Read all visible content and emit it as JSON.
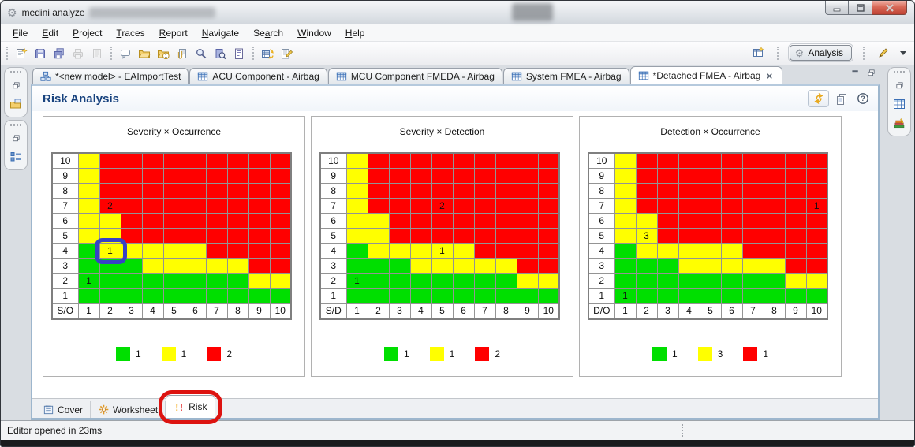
{
  "window": {
    "title": "medini analyze"
  },
  "menu": {
    "items": [
      {
        "label": "File",
        "underline": 0
      },
      {
        "label": "Edit",
        "underline": 0
      },
      {
        "label": "Project",
        "underline": 0
      },
      {
        "label": "Traces",
        "underline": 0
      },
      {
        "label": "Report",
        "underline": 0
      },
      {
        "label": "Navigate",
        "underline": 0
      },
      {
        "label": "Search",
        "underline": 2
      },
      {
        "label": "Window",
        "underline": 0
      },
      {
        "label": "Help",
        "underline": 0
      }
    ]
  },
  "toolbar": {
    "groups": [
      [
        "new-model-icon",
        "save-icon",
        "save-all-icon",
        "print-icon",
        "print-preview-icon"
      ],
      [
        "comment-icon",
        "open-folder-icon",
        "open-recent-icon",
        "attachment-icon",
        "search-icon",
        "inspect-icon",
        "report-icon"
      ],
      [
        "table-refresh-icon",
        "validate-icon"
      ]
    ],
    "perspective_icon": "perspective-icon",
    "analysis_label": "Analysis",
    "pen_icon": "pen-icon"
  },
  "left_strips": [
    [
      "restore-pane-icon",
      "folder-documents-icon"
    ],
    [
      "restore-pane-icon",
      "outline-icon"
    ]
  ],
  "right_strip": [
    "restore-pane-icon",
    "table-view-icon",
    "books-icon"
  ],
  "editor_tabs": [
    {
      "label": "*<new model> - EAImportTest",
      "icon": "model-icon",
      "active": false,
      "closable": false
    },
    {
      "label": "ACU Component - Airbag",
      "icon": "table-icon",
      "active": false,
      "closable": false
    },
    {
      "label": "MCU Component FMEDA - Airbag",
      "icon": "table-icon",
      "active": false,
      "closable": false
    },
    {
      "label": "System FMEA - Airbag",
      "icon": "table-icon",
      "active": false,
      "closable": false
    },
    {
      "label": "*Detached FMEA - Airbag",
      "icon": "table-icon",
      "active": true,
      "closable": true
    }
  ],
  "tabbar_controls": [
    "minimize-pane-icon",
    "restore-pane-icon"
  ],
  "risk_view": {
    "title": "Risk Analysis",
    "header_icons": [
      "refresh-icon",
      "copy-icon",
      "help-icon"
    ],
    "matrices": [
      {
        "title": "Severity × Occurrence",
        "axis_label": "S/O",
        "row_labels": [
          "10",
          "9",
          "8",
          "7",
          "6",
          "5",
          "4",
          "3",
          "2",
          "1"
        ],
        "col_labels": [
          "1",
          "2",
          "3",
          "4",
          "5",
          "6",
          "7",
          "8",
          "9",
          "10"
        ],
        "cells": [
          "YRRRRRRRRR",
          "YRRRRRRRRR",
          "YRRRRRRRRR",
          "YRRRRRRRRR",
          "YYRRRRRRRR",
          "YYRRRRRRRR",
          "GYYYYYRRRR",
          "GGGYYYYYRR",
          "GGGGGGGGYY",
          "GGGGGGGGGG"
        ],
        "cell_texts": [
          {
            "row": "7",
            "col": "2",
            "value": "2"
          },
          {
            "row": "4",
            "col": "2",
            "value": "1"
          },
          {
            "row": "2",
            "col": "1",
            "value": "1"
          }
        ],
        "highlight": {
          "row": "4",
          "col": "2"
        },
        "legend": [
          {
            "color": "green",
            "count": "1"
          },
          {
            "color": "yellow",
            "count": "1"
          },
          {
            "color": "red",
            "count": "2"
          }
        ]
      },
      {
        "title": "Severity × Detection",
        "axis_label": "S/D",
        "row_labels": [
          "10",
          "9",
          "8",
          "7",
          "6",
          "5",
          "4",
          "3",
          "2",
          "1"
        ],
        "col_labels": [
          "1",
          "2",
          "3",
          "4",
          "5",
          "6",
          "7",
          "8",
          "9",
          "10"
        ],
        "cells": [
          "YRRRRRRRRR",
          "YRRRRRRRRR",
          "YRRRRRRRRR",
          "YRRRRRRRRR",
          "YYRRRRRRRR",
          "YYRRRRRRRR",
          "GYYYYYRRRR",
          "GGGYYYYYRR",
          "GGGGGGGGYY",
          "GGGGGGGGGG"
        ],
        "cell_texts": [
          {
            "row": "7",
            "col": "5",
            "value": "2"
          },
          {
            "row": "4",
            "col": "5",
            "value": "1"
          },
          {
            "row": "2",
            "col": "1",
            "value": "1"
          }
        ],
        "highlight": null,
        "legend": [
          {
            "color": "green",
            "count": "1"
          },
          {
            "color": "yellow",
            "count": "1"
          },
          {
            "color": "red",
            "count": "2"
          }
        ]
      },
      {
        "title": "Detection × Occurrence",
        "axis_label": "D/O",
        "row_labels": [
          "10",
          "9",
          "8",
          "7",
          "6",
          "5",
          "4",
          "3",
          "2",
          "1"
        ],
        "col_labels": [
          "1",
          "2",
          "3",
          "4",
          "5",
          "6",
          "7",
          "8",
          "9",
          "10"
        ],
        "cells": [
          "YRRRRRRRRR",
          "YRRRRRRRRR",
          "YRRRRRRRRR",
          "YRRRRRRRRR",
          "YYRRRRRRRR",
          "YYRRRRRRRR",
          "GYYYYYRRRR",
          "GGGYYYYYRR",
          "GGGGGGGGYY",
          "GGGGGGGGGG"
        ],
        "cell_texts": [
          {
            "row": "7",
            "col": "10",
            "value": "1"
          },
          {
            "row": "5",
            "col": "2",
            "value": "3"
          },
          {
            "row": "1",
            "col": "1",
            "value": "1"
          }
        ],
        "highlight": null,
        "legend": [
          {
            "color": "green",
            "count": "1"
          },
          {
            "color": "yellow",
            "count": "3"
          },
          {
            "color": "red",
            "count": "1"
          }
        ]
      }
    ]
  },
  "bottom_tabs": [
    {
      "label": "Cover",
      "icon": "cover-icon",
      "active": false,
      "annotated": false
    },
    {
      "label": "Worksheet",
      "icon": "worksheet-icon",
      "active": false,
      "annotated": false
    },
    {
      "label": "Risk",
      "icon": "risk-icon",
      "active": true,
      "annotated": true
    }
  ],
  "status": {
    "text": "Editor opened in 23ms"
  },
  "colors": {
    "green": "#00df00",
    "yellow": "#ffff00",
    "red": "#ff0000",
    "annotation_blue": "#3742c4",
    "annotation_red": "#dd1310"
  }
}
